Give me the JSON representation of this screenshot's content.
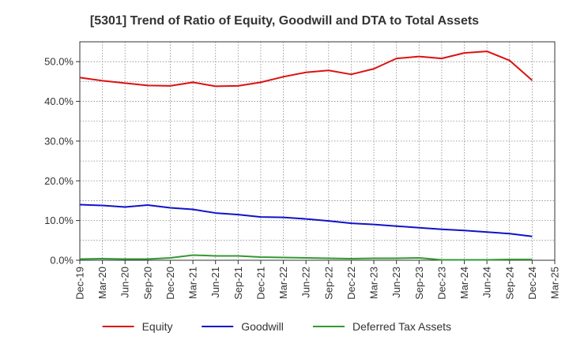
{
  "chart_data": {
    "type": "line",
    "title": "[5301]  Trend of Ratio of Equity, Goodwill and DTA to Total Assets",
    "xlabel": "",
    "ylabel": "",
    "ylim": [
      0,
      55
    ],
    "y_ticks": [
      0,
      10,
      20,
      30,
      40,
      50
    ],
    "y_tick_labels": [
      "0.0%",
      "10.0%",
      "20.0%",
      "30.0%",
      "40.0%",
      "50.0%"
    ],
    "x": [
      "Dec-19",
      "Mar-20",
      "Jun-20",
      "Sep-20",
      "Dec-20",
      "Mar-21",
      "Jun-21",
      "Sep-21",
      "Dec-21",
      "Mar-22",
      "Jun-22",
      "Sep-22",
      "Dec-22",
      "Mar-23",
      "Jun-23",
      "Sep-23",
      "Dec-23",
      "Mar-24",
      "Jun-24",
      "Sep-24",
      "Dec-24",
      "Mar-25"
    ],
    "grid": true,
    "legend_position": "bottom",
    "series": [
      {
        "name": "Equity",
        "color": "#dd1111",
        "values": [
          46.0,
          45.2,
          44.6,
          44.0,
          43.9,
          44.8,
          43.8,
          43.9,
          44.8,
          46.2,
          47.3,
          47.8,
          46.8,
          48.2,
          50.8,
          51.3,
          50.8,
          52.2,
          52.6,
          50.3,
          45.3,
          null
        ]
      },
      {
        "name": "Goodwill",
        "color": "#1111cc",
        "values": [
          14.0,
          13.8,
          13.4,
          13.9,
          13.2,
          12.8,
          11.9,
          11.5,
          10.9,
          10.8,
          10.4,
          9.9,
          9.3,
          9.0,
          8.6,
          8.2,
          7.8,
          7.5,
          7.1,
          6.7,
          6.0,
          null
        ]
      },
      {
        "name": "Deferred Tax Assets",
        "color": "#339933",
        "values": [
          0.3,
          0.4,
          0.3,
          0.3,
          0.6,
          1.3,
          1.1,
          1.1,
          0.8,
          0.7,
          0.6,
          0.5,
          0.4,
          0.5,
          0.5,
          0.6,
          0.1,
          0.1,
          0.1,
          0.2,
          0.2,
          null
        ]
      }
    ]
  }
}
